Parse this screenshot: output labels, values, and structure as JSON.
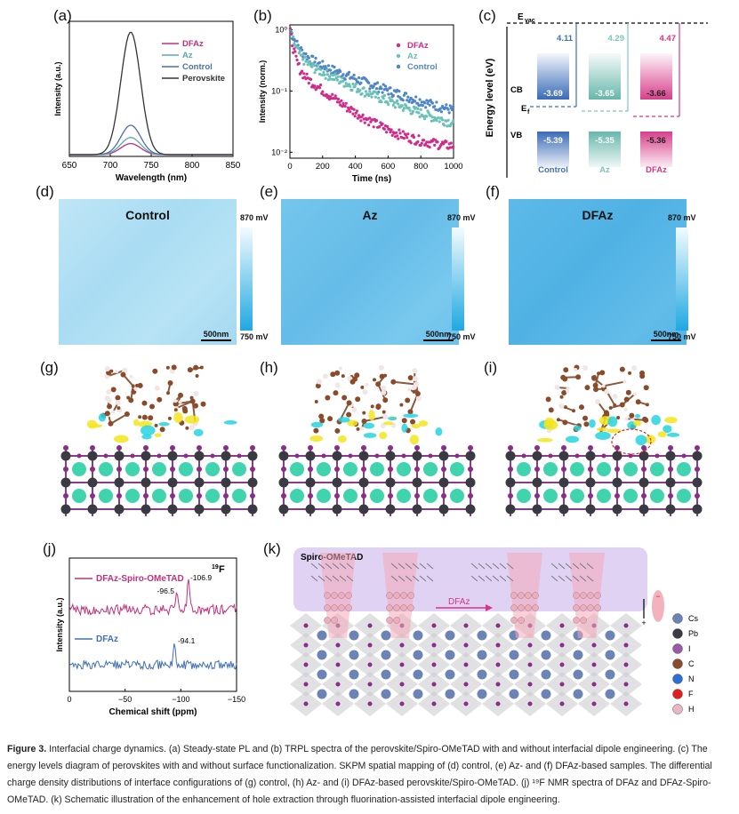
{
  "panel_labels": {
    "a": "(a)",
    "b": "(b)",
    "c": "(c)",
    "d": "(d)",
    "e": "(e)",
    "f": "(f)",
    "g": "(g)",
    "h": "(h)",
    "i": "(i)",
    "j": "(j)",
    "k": "(k)"
  },
  "chart_data": [
    {
      "id": "a",
      "type": "line",
      "xlabel": "Wavelength (nm)",
      "ylabel": "Intensity (a.u.)",
      "xlim": [
        650,
        850
      ],
      "xticks": [
        "650",
        "700",
        "750",
        "800",
        "850"
      ],
      "peak_x": 725,
      "series": [
        {
          "name": "DFAz",
          "color": "#c2307a",
          "peak": 0.09
        },
        {
          "name": "Az",
          "color": "#5aa8b8",
          "peak": 0.14
        },
        {
          "name": "Control",
          "color": "#4d6fa6",
          "peak": 0.24
        },
        {
          "name": "Perovskite",
          "color": "#333333",
          "peak": 1.0
        }
      ]
    },
    {
      "id": "b",
      "type": "scatter",
      "xlabel": "Time (ns)",
      "ylabel": "Intensity (norm.)",
      "xlim": [
        0,
        1000
      ],
      "ylim": [
        0.008,
        1.2
      ],
      "yscale": "log",
      "xticks": [
        "0",
        "200",
        "400",
        "600",
        "800",
        "1000"
      ],
      "yticks": [
        "10⁻²",
        "10⁻¹",
        "10⁰"
      ],
      "series": [
        {
          "name": "DFAz",
          "color": "#d12b8a",
          "tau1": 20,
          "tau2": 200,
          "a1": 0.75,
          "floor": 0.011
        },
        {
          "name": "Az",
          "color": "#6ac1b8",
          "tau1": 30,
          "tau2": 320,
          "a1": 0.65,
          "floor": 0.015
        },
        {
          "name": "Control",
          "color": "#4f86c6",
          "tau1": 40,
          "tau2": 380,
          "a1": 0.6,
          "floor": 0.02
        }
      ]
    }
  ],
  "energy": {
    "ylabel": "Energy  level (eV)",
    "evac": "E",
    "evac_sub": "vac",
    "ef": "E",
    "ef_sub": "f",
    "cb": "CB",
    "vb": "VB",
    "columns": [
      {
        "name": "Control",
        "wf": "4.11",
        "cb": "-3.69",
        "vb": "-5.39",
        "color": "#2f63b3",
        "wfcolor": "#3f6fb8"
      },
      {
        "name": "Az",
        "wf": "4.29",
        "cb": "-3.65",
        "vb": "-5.35",
        "color": "#5fb3a6",
        "wfcolor": "#7cc4b9"
      },
      {
        "name": "DFAz",
        "wf": "4.47",
        "cb": "-3.66",
        "vb": "-5.36",
        "color": "#d63585",
        "wfcolor": "#d63585"
      }
    ]
  },
  "skpm": [
    {
      "title": "Control",
      "scale": "500nm",
      "cmax": "870 mV",
      "cmin": "750 mV"
    },
    {
      "title": "Az",
      "scale": "500nm",
      "cmax": "870 mV",
      "cmin": "750 mV"
    },
    {
      "title": "DFAz",
      "scale": "500nm",
      "cmax": "870 mV",
      "cmin": "750 mV"
    }
  ],
  "nmr": {
    "nucleus_sup": "19",
    "nucleus": "F",
    "xlabel": "Chemical shift (ppm)",
    "ylabel": "Intensity (a.u.)",
    "xticks": [
      "0",
      "−50",
      "−100",
      "−150"
    ],
    "series": [
      {
        "name": "DFAz-Spiro-OMeTAD",
        "color": "#c2307a",
        "peaks": [
          "-96.5",
          "-106.9"
        ]
      },
      {
        "name": "DFAz",
        "color": "#3f6fb8",
        "peaks": [
          "-94.1"
        ]
      }
    ]
  },
  "schematic": {
    "top_label": "Spiro-OMeTAD",
    "arrow_label": "DFAz",
    "dipole_plus": "+",
    "dipole_minus": "−",
    "legend": [
      {
        "name": "Cs",
        "color": "#6b84b5"
      },
      {
        "name": "Pb",
        "color": "#3b3b44"
      },
      {
        "name": "I",
        "color": "#9b5aa8"
      },
      {
        "name": "C",
        "color": "#8a4b2a"
      },
      {
        "name": "N",
        "color": "#2b6fd6"
      },
      {
        "name": "F",
        "color": "#e02020"
      },
      {
        "name": "H",
        "color": "#e8b7c1"
      }
    ]
  },
  "caption": {
    "figure": "Figure 3.",
    "text": " Interfacial charge dynamics. (a) Steady-state PL and (b) TRPL spectra of the perovskite/Spiro-OMeTAD with and without interfacial dipole engineering. (c) The energy levels diagram of perovskites with and without surface functionalization. SKPM spatial mapping of (d) control, (e) Az- and (f) DFAz-based samples. The differential charge density distributions of interface configurations of (g) control, (h) Az- and (i) DFAz-based perovskite/Spiro-OMeTAD. (j) ¹⁹F NMR spectra of DFAz and DFAz-Spiro-OMeTAD. (k) Schematic illustration of the enhancement of hole extraction through fluorination-assisted interfacial dipole engineering."
  }
}
